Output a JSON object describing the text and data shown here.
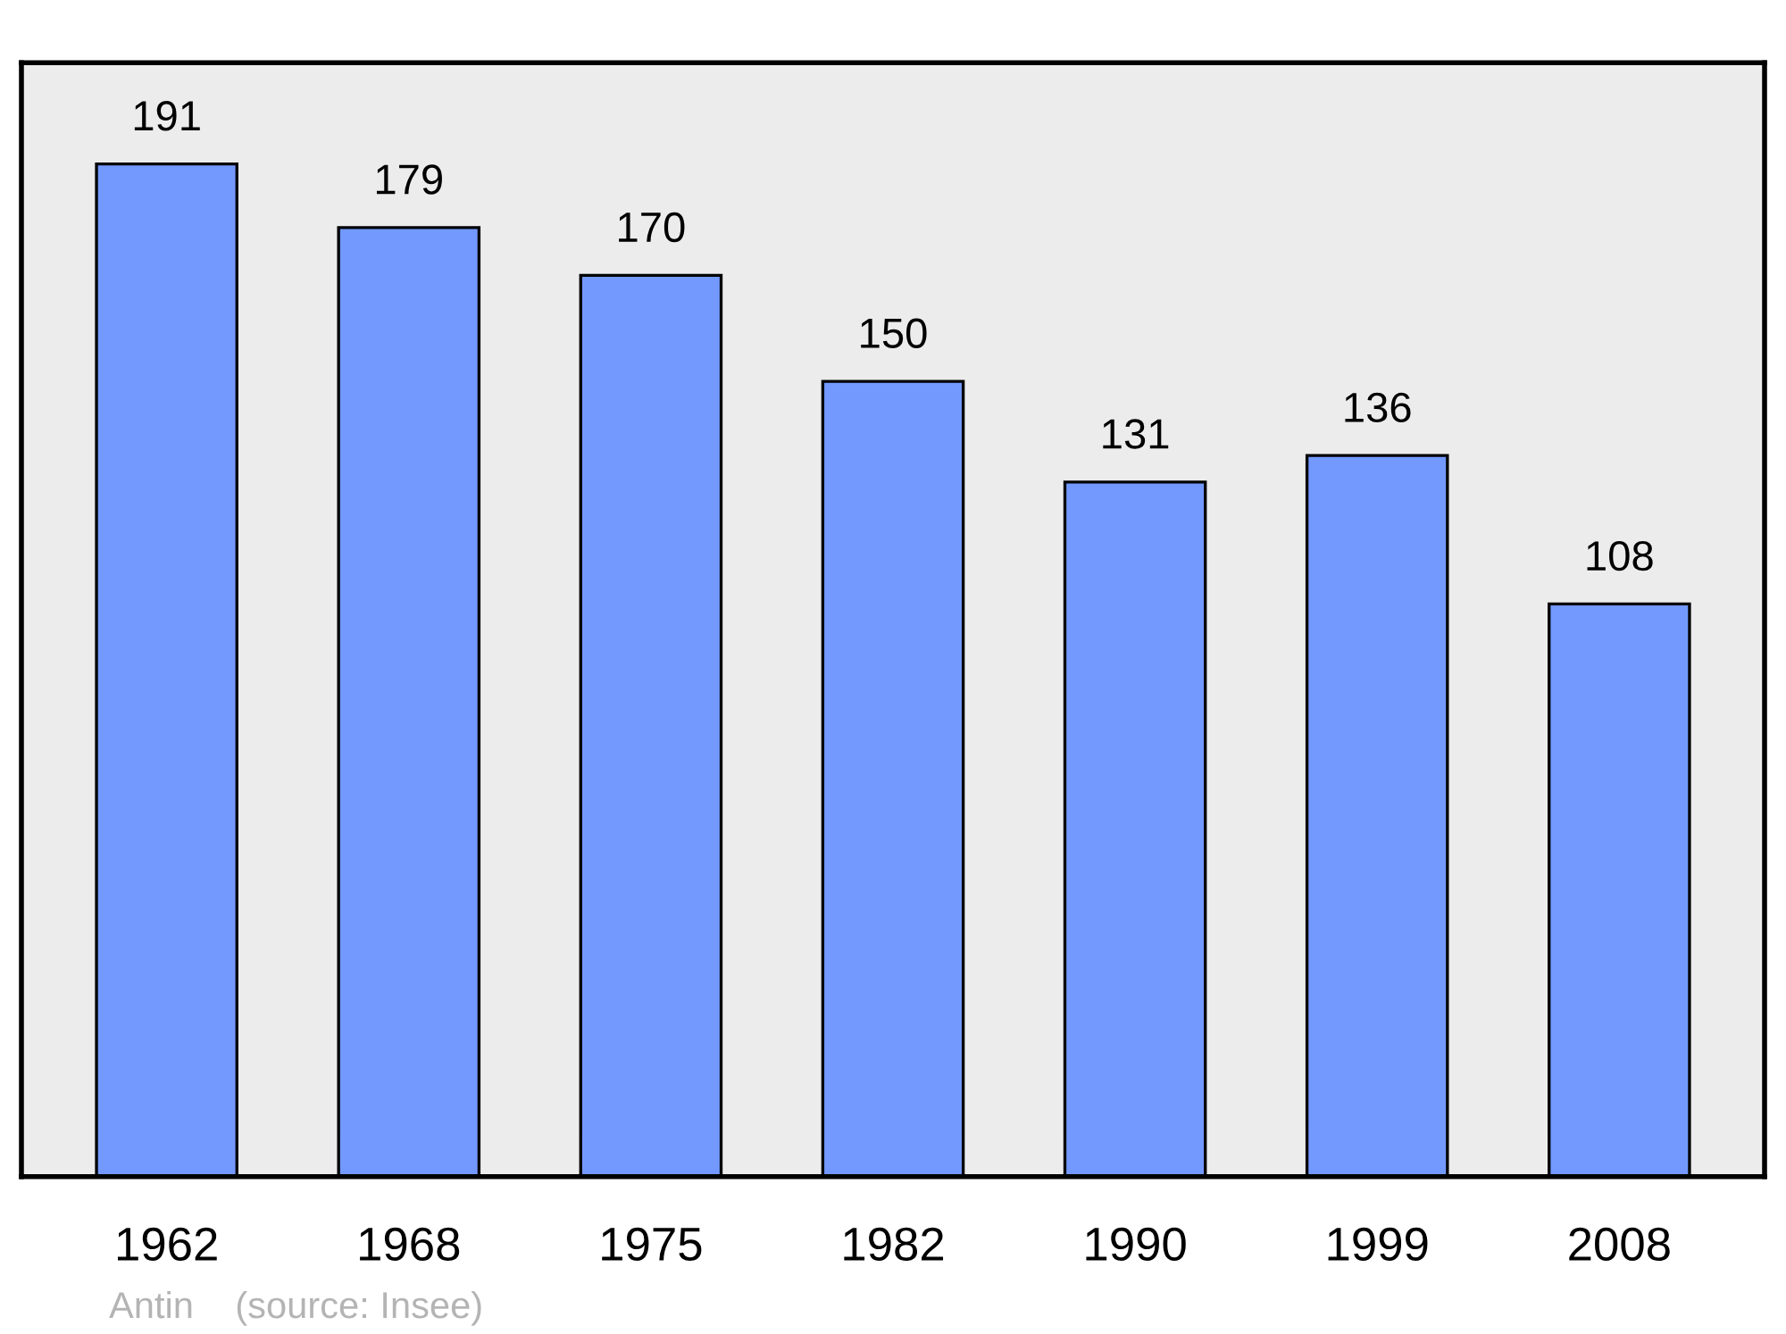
{
  "chart_data": {
    "type": "bar",
    "categories": [
      "1962",
      "1968",
      "1975",
      "1982",
      "1990",
      "1999",
      "2008"
    ],
    "values": [
      191,
      179,
      170,
      150,
      131,
      136,
      108
    ],
    "color": "#7399ff",
    "data_labels": true,
    "grid": false,
    "legend": false,
    "tick_labels": "x",
    "annotations": [
      "Antin    (source: Insee)"
    ]
  }
}
